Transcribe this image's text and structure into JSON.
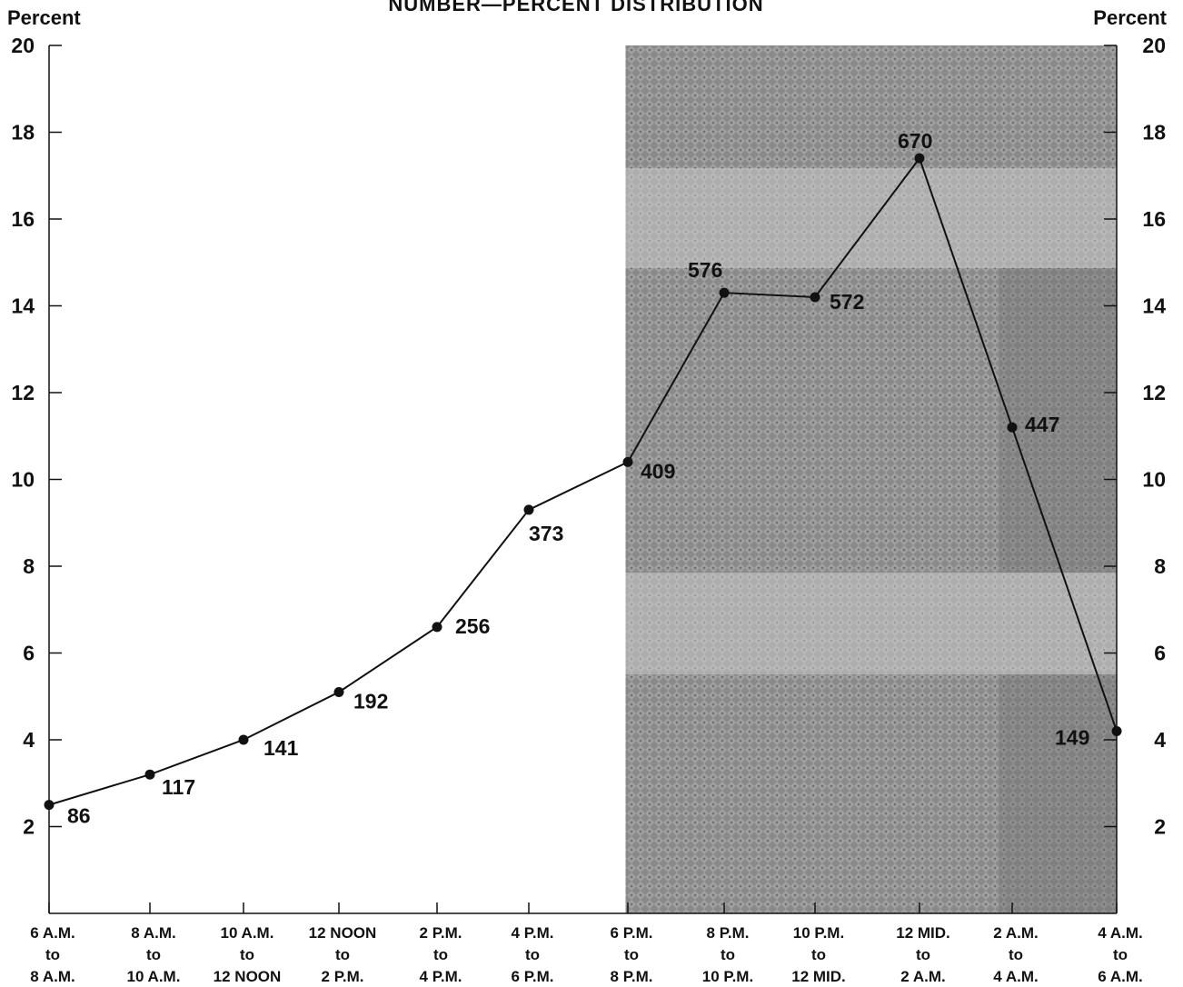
{
  "chart_data": {
    "type": "line",
    "title": "NUMBER—PERCENT DISTRIBUTION",
    "ylabel_left": "Percent",
    "ylabel_right": "Percent",
    "ylim": [
      0,
      20
    ],
    "yticks": [
      "2",
      "4",
      "6",
      "8",
      "10",
      "12",
      "14",
      "16",
      "18",
      "20"
    ],
    "grid": false,
    "x_categories": [
      [
        "6 A.M.",
        "to",
        "8 A.M."
      ],
      [
        "8 A.M.",
        "to",
        "10 A.M."
      ],
      [
        "10 A.M.",
        "to",
        "12 NOON"
      ],
      [
        "12 NOON",
        "to",
        "2 P.M."
      ],
      [
        "2 P.M.",
        "to",
        "4 P.M."
      ],
      [
        "4 P.M.",
        "to",
        "6 P.M."
      ],
      [
        "6 P.M.",
        "to",
        "8 P.M."
      ],
      [
        "8 P.M.",
        "to",
        "10 P.M."
      ],
      [
        "10 P.M.",
        "to",
        "12 MID."
      ],
      [
        "12 MID.",
        "to",
        "2 A.M."
      ],
      [
        "2 A.M.",
        "to",
        "4 A.M."
      ],
      [
        "4 A.M.",
        "to",
        "6 A.M."
      ]
    ],
    "series": [
      {
        "values": [
          2.5,
          3.2,
          4.0,
          5.1,
          6.6,
          9.3,
          10.4,
          14.3,
          14.2,
          17.4,
          11.2,
          4.2
        ],
        "point_labels": [
          "86",
          "117",
          "141",
          "192",
          "256",
          "373",
          "409",
          "576",
          "572",
          "670",
          "447",
          "149"
        ]
      }
    ],
    "shaded_region": {
      "from_category_index": 5.5,
      "to_category_index": 11
    },
    "line_color": "#111111",
    "shade_color": "#8a8a8a"
  }
}
